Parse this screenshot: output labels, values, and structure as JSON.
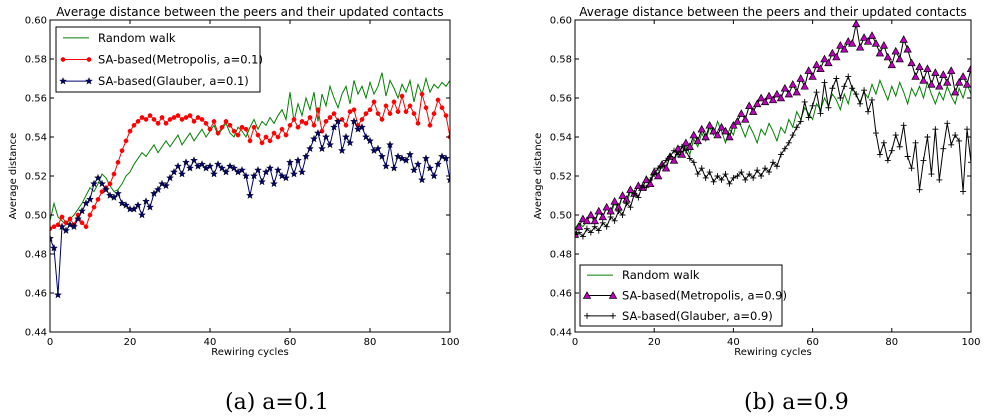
{
  "captions": [
    "(a) a=0.1",
    "(b) a=0.9"
  ],
  "colors": {
    "random_walk": "#008000",
    "metropolis_a": "#ff0000",
    "glauber_a": "#00006e",
    "metropolis_b_fill": "#bf00bf",
    "glauber_b": "#000000",
    "axes": "#000000"
  },
  "chart_data": [
    {
      "type": "line",
      "title": "Average distance between the peers and their updated contacts",
      "xlabel": "Rewiring cycles",
      "ylabel": "Average distance",
      "xlim": [
        0,
        100
      ],
      "ylim": [
        0.44,
        0.6
      ],
      "xticks": [
        0,
        20,
        40,
        60,
        80,
        100
      ],
      "yticks": [
        0.44,
        0.46,
        0.48,
        0.5,
        0.52,
        0.54,
        0.56,
        0.58,
        0.6
      ],
      "ytick_labels": [
        "0.44",
        "0.46",
        "0.48",
        "0.50",
        "0.52",
        "0.54",
        "0.56",
        "0.58",
        "0.60"
      ],
      "grid": false,
      "legend_position": "top-left",
      "series": [
        {
          "name": "Random walk",
          "marker": "none",
          "color": "#008000",
          "values": [
            0.497,
            0.506,
            0.499,
            0.497,
            0.495,
            0.498,
            0.5,
            0.503,
            0.506,
            0.51,
            0.514,
            0.512,
            0.516,
            0.521,
            0.519,
            0.515,
            0.512,
            0.513,
            0.516,
            0.52,
            0.522,
            0.526,
            0.529,
            0.532,
            0.53,
            0.533,
            0.536,
            0.532,
            0.535,
            0.538,
            0.535,
            0.538,
            0.541,
            0.536,
            0.539,
            0.542,
            0.538,
            0.541,
            0.544,
            0.54,
            0.543,
            0.546,
            0.541,
            0.544,
            0.547,
            0.542,
            0.54,
            0.545,
            0.543,
            0.54,
            0.545,
            0.549,
            0.544,
            0.548,
            0.546,
            0.55,
            0.547,
            0.551,
            0.554,
            0.549,
            0.563,
            0.548,
            0.557,
            0.551,
            0.56,
            0.554,
            0.563,
            0.548,
            0.562,
            0.556,
            0.566,
            0.56,
            0.555,
            0.562,
            0.566,
            0.557,
            0.569,
            0.562,
            0.566,
            0.56,
            0.568,
            0.562,
            0.566,
            0.573,
            0.561,
            0.569,
            0.565,
            0.56,
            0.567,
            0.563,
            0.569,
            0.558,
            0.567,
            0.562,
            0.57,
            0.563,
            0.567,
            0.565,
            0.568,
            0.566,
            0.569
          ]
        },
        {
          "name": "SA-based(Metropolis, a=0.1)",
          "marker": "dot",
          "color": "#ff0000",
          "values": [
            0.493,
            0.494,
            0.495,
            0.499,
            0.496,
            0.498,
            0.495,
            0.5,
            0.496,
            0.494,
            0.5,
            0.504,
            0.508,
            0.512,
            0.514,
            0.516,
            0.521,
            0.527,
            0.533,
            0.538,
            0.543,
            0.546,
            0.548,
            0.55,
            0.549,
            0.551,
            0.549,
            0.547,
            0.55,
            0.547,
            0.549,
            0.55,
            0.551,
            0.549,
            0.55,
            0.551,
            0.548,
            0.55,
            0.549,
            0.547,
            0.544,
            0.548,
            0.542,
            0.545,
            0.548,
            0.546,
            0.543,
            0.541,
            0.545,
            0.544,
            0.538,
            0.545,
            0.541,
            0.537,
            0.54,
            0.538,
            0.542,
            0.54,
            0.544,
            0.541,
            0.546,
            0.549,
            0.545,
            0.548,
            0.547,
            0.55,
            0.546,
            0.554,
            0.543,
            0.548,
            0.55,
            0.552,
            0.548,
            0.549,
            0.546,
            0.553,
            0.554,
            0.546,
            0.549,
            0.552,
            0.554,
            0.558,
            0.552,
            0.549,
            0.556,
            0.552,
            0.558,
            0.553,
            0.561,
            0.553,
            0.556,
            0.552,
            0.547,
            0.562,
            0.555,
            0.546,
            0.552,
            0.559,
            0.555,
            0.551,
            0.54
          ]
        },
        {
          "name": "SA-based(Glauber, a=0.1)",
          "marker": "star",
          "color": "#00006e",
          "values": [
            0.488,
            0.483,
            0.459,
            0.494,
            0.492,
            0.495,
            0.494,
            0.498,
            0.502,
            0.506,
            0.508,
            0.516,
            0.519,
            0.516,
            0.513,
            0.51,
            0.509,
            0.511,
            0.506,
            0.505,
            0.503,
            0.503,
            0.505,
            0.5,
            0.507,
            0.504,
            0.511,
            0.513,
            0.516,
            0.515,
            0.519,
            0.522,
            0.525,
            0.521,
            0.527,
            0.524,
            0.528,
            0.525,
            0.526,
            0.524,
            0.525,
            0.521,
            0.526,
            0.524,
            0.522,
            0.525,
            0.524,
            0.522,
            0.523,
            0.52,
            0.51,
            0.52,
            0.523,
            0.517,
            0.522,
            0.524,
            0.516,
            0.523,
            0.52,
            0.519,
            0.527,
            0.521,
            0.528,
            0.522,
            0.53,
            0.534,
            0.539,
            0.542,
            0.534,
            0.54,
            0.536,
            0.545,
            0.548,
            0.533,
            0.54,
            0.537,
            0.548,
            0.544,
            0.545,
            0.54,
            0.538,
            0.533,
            0.534,
            0.53,
            0.525,
            0.536,
            0.524,
            0.53,
            0.529,
            0.528,
            0.531,
            0.523,
            0.526,
            0.518,
            0.529,
            0.524,
            0.52,
            0.526,
            0.53,
            0.529,
            0.518
          ]
        }
      ]
    },
    {
      "type": "line",
      "title": "Average distance between the peers and their updated contacts",
      "xlabel": "Rewiring cycles",
      "ylabel": "Average distance",
      "xlim": [
        0,
        100
      ],
      "ylim": [
        0.44,
        0.6
      ],
      "xticks": [
        0,
        20,
        40,
        60,
        80,
        100
      ],
      "yticks": [
        0.44,
        0.46,
        0.48,
        0.5,
        0.52,
        0.54,
        0.56,
        0.58,
        0.6
      ],
      "ytick_labels": [
        "0.44",
        "0.46",
        "0.48",
        "0.50",
        "0.52",
        "0.54",
        "0.56",
        "0.58",
        "0.60"
      ],
      "grid": false,
      "legend_position": "bottom-left",
      "series": [
        {
          "name": "Random walk",
          "marker": "none",
          "color": "#008000",
          "values": [
            0.493,
            0.496,
            0.494,
            0.497,
            0.5,
            0.496,
            0.502,
            0.499,
            0.504,
            0.5,
            0.506,
            0.503,
            0.51,
            0.506,
            0.512,
            0.51,
            0.516,
            0.513,
            0.52,
            0.517,
            0.524,
            0.52,
            0.527,
            0.524,
            0.53,
            0.527,
            0.533,
            0.53,
            0.536,
            0.531,
            0.539,
            0.535,
            0.542,
            0.538,
            0.545,
            0.541,
            0.548,
            0.543,
            0.537,
            0.544,
            0.541,
            0.549,
            0.545,
            0.54,
            0.546,
            0.542,
            0.537,
            0.544,
            0.541,
            0.547,
            0.543,
            0.538,
            0.545,
            0.542,
            0.549,
            0.545,
            0.553,
            0.549,
            0.555,
            0.552,
            0.549,
            0.557,
            0.554,
            0.56,
            0.556,
            0.562,
            0.559,
            0.554,
            0.562,
            0.557,
            0.566,
            0.561,
            0.558,
            0.563,
            0.56,
            0.567,
            0.562,
            0.569,
            0.564,
            0.559,
            0.566,
            0.561,
            0.568,
            0.563,
            0.557,
            0.565,
            0.561,
            0.566,
            0.56,
            0.568,
            0.562,
            0.557,
            0.563,
            0.559,
            0.566,
            0.561,
            0.557,
            0.565,
            0.56,
            0.567,
            0.562
          ]
        },
        {
          "name": "SA-based(Metropolis, a=0.9)",
          "marker": "triangle",
          "color": "#000000",
          "fill": "#bf00bf",
          "values": [
            0.49,
            0.494,
            0.498,
            0.497,
            0.5,
            0.497,
            0.502,
            0.499,
            0.504,
            0.502,
            0.507,
            0.504,
            0.51,
            0.508,
            0.513,
            0.511,
            0.515,
            0.514,
            0.518,
            0.516,
            0.522,
            0.52,
            0.526,
            0.524,
            0.53,
            0.528,
            0.534,
            0.531,
            0.537,
            0.535,
            0.541,
            0.538,
            0.544,
            0.54,
            0.546,
            0.543,
            0.541,
            0.545,
            0.543,
            0.54,
            0.546,
            0.548,
            0.552,
            0.549,
            0.556,
            0.553,
            0.557,
            0.56,
            0.558,
            0.561,
            0.559,
            0.562,
            0.56,
            0.565,
            0.562,
            0.567,
            0.563,
            0.57,
            0.566,
            0.574,
            0.571,
            0.577,
            0.575,
            0.58,
            0.578,
            0.583,
            0.581,
            0.587,
            0.585,
            0.589,
            0.588,
            0.598,
            0.586,
            0.591,
            0.589,
            0.592,
            0.588,
            0.583,
            0.587,
            0.581,
            0.577,
            0.584,
            0.58,
            0.59,
            0.585,
            0.578,
            0.571,
            0.576,
            0.569,
            0.575,
            0.567,
            0.573,
            0.566,
            0.572,
            0.568,
            0.574,
            0.563,
            0.568,
            0.571,
            0.567,
            0.575
          ]
        },
        {
          "name": "SA-based(Glauber, a=0.9)",
          "marker": "plus",
          "color": "#000000",
          "values": [
            0.49,
            0.491,
            0.489,
            0.493,
            0.491,
            0.494,
            0.492,
            0.496,
            0.494,
            0.499,
            0.497,
            0.502,
            0.5,
            0.506,
            0.504,
            0.511,
            0.509,
            0.515,
            0.514,
            0.518,
            0.521,
            0.524,
            0.525,
            0.528,
            0.53,
            0.533,
            0.531,
            0.535,
            0.533,
            0.529,
            0.527,
            0.521,
            0.524,
            0.519,
            0.522,
            0.517,
            0.52,
            0.518,
            0.521,
            0.516,
            0.519,
            0.52,
            0.522,
            0.518,
            0.521,
            0.519,
            0.523,
            0.52,
            0.524,
            0.522,
            0.527,
            0.525,
            0.531,
            0.534,
            0.537,
            0.541,
            0.545,
            0.548,
            0.558,
            0.55,
            0.556,
            0.563,
            0.552,
            0.568,
            0.555,
            0.565,
            0.57,
            0.56,
            0.566,
            0.571,
            0.565,
            0.562,
            0.557,
            0.564,
            0.553,
            0.559,
            0.542,
            0.531,
            0.537,
            0.528,
            0.533,
            0.541,
            0.535,
            0.546,
            0.53,
            0.524,
            0.537,
            0.513,
            0.528,
            0.54,
            0.521,
            0.544,
            0.518,
            0.534,
            0.547,
            0.536,
            0.541,
            0.538,
            0.512,
            0.544,
            0.527
          ]
        }
      ]
    }
  ]
}
